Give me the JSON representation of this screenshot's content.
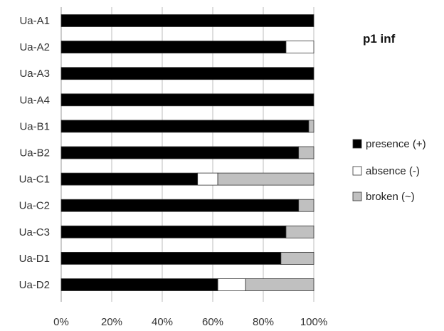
{
  "chart_data": {
    "type": "bar",
    "orientation": "horizontal",
    "stacked": "percent",
    "title": "p1 inf",
    "xlabel": "",
    "ylabel": "",
    "categories": [
      "Ua-A1",
      "Ua-A2",
      "Ua-A3",
      "Ua-A4",
      "Ua-B1",
      "Ua-B2",
      "Ua-C1",
      "Ua-C2",
      "Ua-C3",
      "Ua-D1",
      "Ua-D2"
    ],
    "series": [
      {
        "name": "presence (+)",
        "color": "#000000",
        "values": [
          100,
          89,
          100,
          100,
          98,
          94,
          54,
          94,
          89,
          87,
          62
        ]
      },
      {
        "name": "absence (-)",
        "color": "#ffffff",
        "values": [
          0,
          11,
          0,
          0,
          0,
          0,
          8,
          0,
          0,
          0,
          11
        ]
      },
      {
        "name": "broken (~)",
        "color": "#c0c0c0",
        "values": [
          0,
          0,
          0,
          0,
          2,
          6,
          38,
          6,
          11,
          13,
          27
        ]
      }
    ],
    "xlim": [
      0,
      100
    ],
    "xticks": [
      "0%",
      "20%",
      "40%",
      "60%",
      "80%",
      "100%"
    ],
    "legend_position": "right",
    "grid": "vertical"
  }
}
